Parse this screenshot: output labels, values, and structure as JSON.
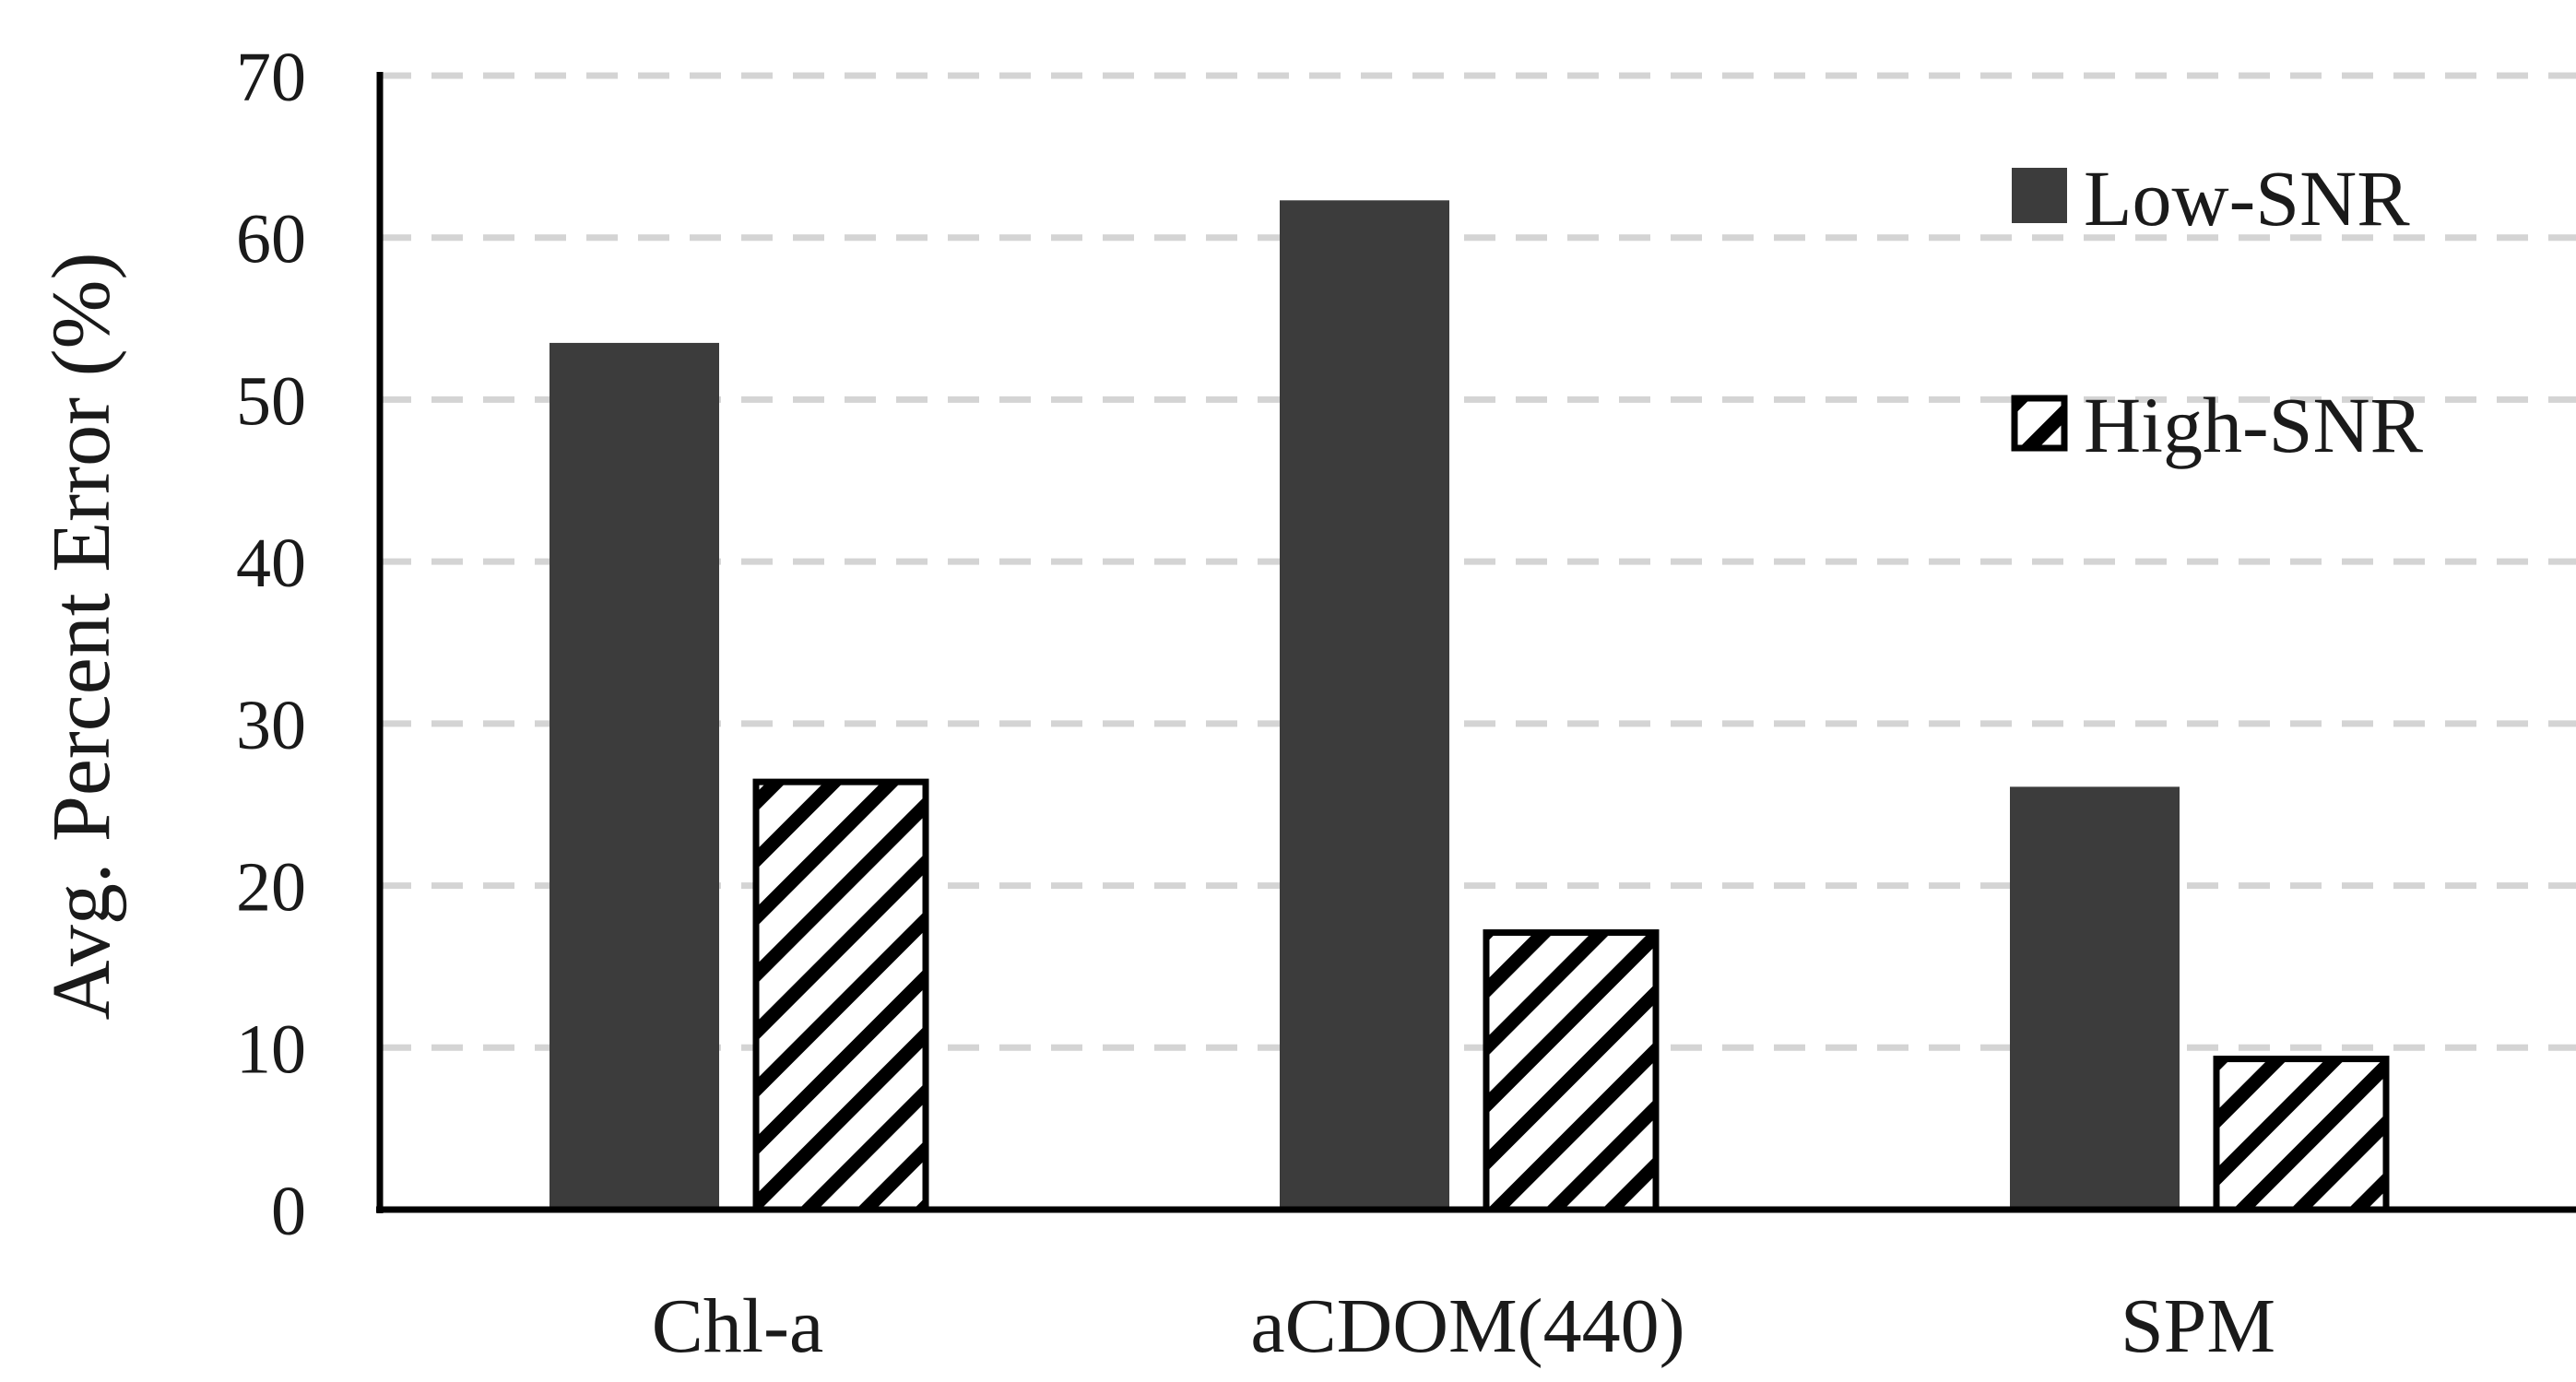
{
  "chart_data": {
    "type": "bar",
    "title": "",
    "xlabel": "",
    "ylabel": "Avg. Percent Error (%)",
    "ylim": [
      0,
      70
    ],
    "yticks": [
      0,
      10,
      20,
      30,
      40,
      50,
      60,
      70
    ],
    "grid": true,
    "legend_position": "top-right",
    "categories": [
      "Chl-a",
      "aCDOM(440)",
      "SPM"
    ],
    "series": [
      {
        "name": "Low-SNR",
        "values": [
          53.5,
          62.3,
          26.1
        ],
        "color": "#3c3c3c",
        "pattern": "solid"
      },
      {
        "name": "High-SNR",
        "values": [
          26.4,
          17.1,
          9.3
        ],
        "color": "#000000",
        "pattern": "diagonal-hatch"
      }
    ]
  }
}
